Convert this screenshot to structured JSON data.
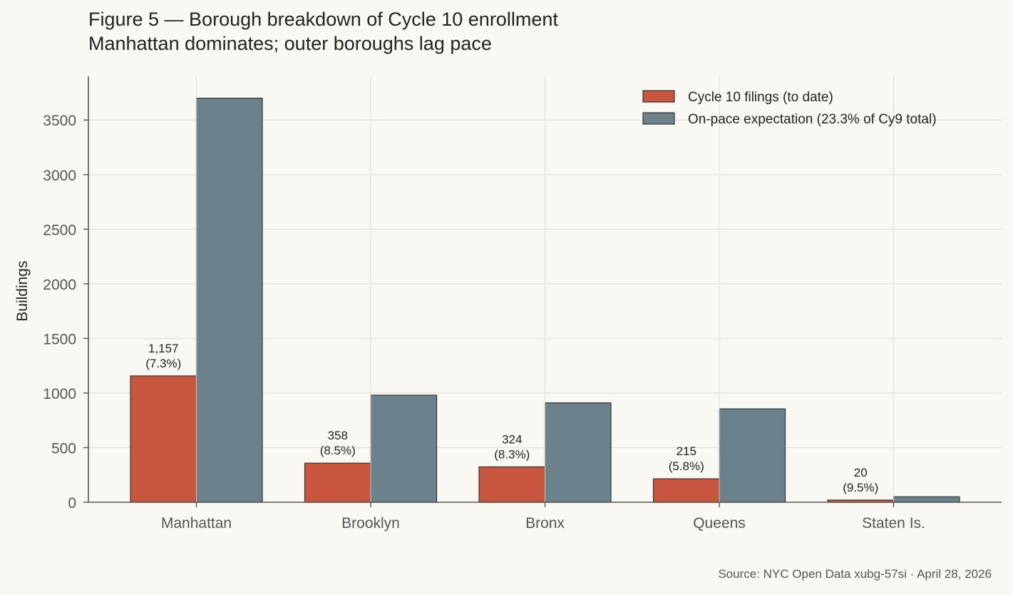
{
  "title": "Figure 5 — Borough breakdown of Cycle 10 enrollment",
  "subtitle": "Manhattan dominates; outer boroughs lag pace",
  "source": "Source: NYC Open Data xubg-57si · April 28, 2026",
  "colors": {
    "background": "#f9f8f3",
    "filings": "#c8553d",
    "expectation": "#6b818c",
    "bar_edge": "#333333",
    "grid": "#e6e4dd",
    "axis": "#555555"
  },
  "chart_data": {
    "type": "bar",
    "categories": [
      "Manhattan",
      "Brooklyn",
      "Bronx",
      "Queens",
      "Staten Is."
    ],
    "series": [
      {
        "name": "Cycle 10 filings (to date)",
        "values": [
          1157,
          358,
          324,
          215,
          20
        ],
        "labels": [
          [
            "1,157",
            "(7.3%)"
          ],
          [
            "358",
            "(8.5%)"
          ],
          [
            "324",
            "(8.3%)"
          ],
          [
            "215",
            "(5.8%)"
          ],
          [
            "20",
            "(9.5%)"
          ]
        ]
      },
      {
        "name": "On-pace expectation (23.3% of Cy9 total)",
        "values": [
          3700,
          980,
          910,
          855,
          50
        ]
      }
    ],
    "ylabel": "Buildings",
    "xlabel": "",
    "ylim": [
      0,
      3900
    ],
    "yticks": [
      0,
      500,
      1000,
      1500,
      2000,
      2500,
      3000,
      3500
    ],
    "grid": true,
    "legend_position": "top-right"
  }
}
